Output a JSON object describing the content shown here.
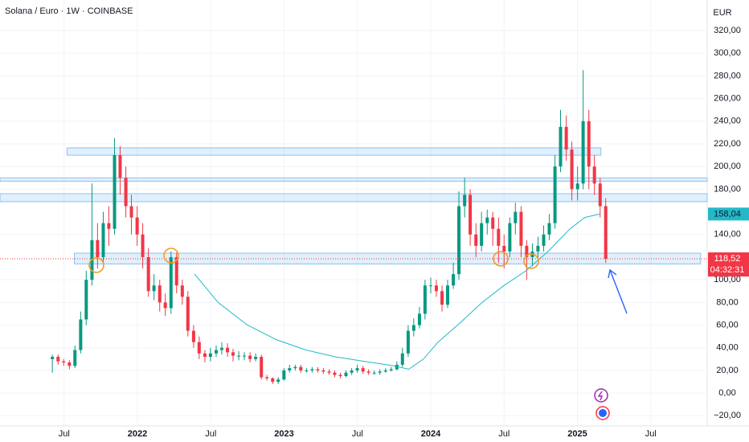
{
  "chart_data": {
    "type": "candlestick",
    "title": "Solana / Euro · 1W · COINBASE",
    "y_unit": "EUR",
    "up_color": "#089981",
    "down_color": "#f23645",
    "xlim": [
      2021.063,
      2025.885
    ],
    "xticks": [
      {
        "value": 2021.5,
        "label": "Jul"
      },
      2022,
      {
        "value": 2022.5,
        "label": "Jul"
      },
      2023,
      {
        "value": 2023.5,
        "label": "Jul"
      },
      2024,
      {
        "value": 2024.5,
        "label": "Jul"
      },
      2025,
      {
        "value": 2025.5,
        "label": "Jul"
      }
    ],
    "ylim": [
      -29,
      347
    ],
    "yticks": [
      {
        "value": -20,
        "label": "−20,00"
      },
      {
        "value": 0,
        "label": "0,00"
      },
      {
        "value": 20,
        "label": "20,00"
      },
      {
        "value": 40,
        "label": "40,00"
      },
      {
        "value": 60,
        "label": "60,00"
      },
      {
        "value": 80,
        "label": "80,00"
      },
      {
        "value": 100,
        "label": "100,00"
      },
      {
        "value": 140,
        "label": "140,00"
      },
      {
        "value": 180,
        "label": "180,00"
      },
      {
        "value": 200,
        "label": "200,00"
      },
      {
        "value": 220,
        "label": "220,00"
      },
      {
        "value": 240,
        "label": "240,00"
      },
      {
        "value": 260,
        "label": "260,00"
      },
      {
        "value": 280,
        "label": "280,00"
      },
      {
        "value": 300,
        "label": "300,00"
      },
      {
        "value": 320,
        "label": "320,00"
      }
    ],
    "x": [
      2021.42,
      2021.459,
      2021.497,
      2021.536,
      2021.574,
      2021.613,
      2021.651,
      2021.69,
      2021.728,
      2021.767,
      2021.805,
      2021.844,
      2021.882,
      2021.921,
      2021.959,
      2021.998,
      2022.036,
      2022.075,
      2022.113,
      2022.152,
      2022.19,
      2022.229,
      2022.267,
      2022.306,
      2022.344,
      2022.383,
      2022.421,
      2022.46,
      2022.498,
      2022.537,
      2022.575,
      2022.614,
      2022.652,
      2022.691,
      2022.729,
      2022.768,
      2022.806,
      2022.845,
      2022.883,
      2022.922,
      2022.96,
      2022.999,
      2023.037,
      2023.076,
      2023.114,
      2023.153,
      2023.191,
      2023.23,
      2023.268,
      2023.307,
      2023.345,
      2023.384,
      2023.422,
      2023.461,
      2023.499,
      2023.538,
      2023.576,
      2023.615,
      2023.653,
      2023.692,
      2023.73,
      2023.769,
      2023.807,
      2023.846,
      2023.884,
      2023.923,
      2023.961,
      2024.0,
      2024.038,
      2024.077,
      2024.115,
      2024.154,
      2024.192,
      2024.231,
      2024.269,
      2024.308,
      2024.346,
      2024.385,
      2024.423,
      2024.462,
      2024.5,
      2024.539,
      2024.577,
      2024.616,
      2024.654,
      2024.693,
      2024.731,
      2024.77,
      2024.808,
      2024.847,
      2024.885,
      2024.924,
      2024.962,
      2025.001,
      2025.039,
      2025.078,
      2025.116,
      2025.155,
      2025.193
    ],
    "open": [
      30,
      32,
      28,
      27,
      24,
      38,
      65,
      100,
      135,
      120,
      150,
      145,
      210,
      190,
      165,
      155,
      140,
      120,
      90,
      95,
      80,
      75,
      120,
      95,
      85,
      55,
      45,
      35,
      32,
      35,
      38,
      40,
      36,
      33,
      33,
      33,
      30,
      32,
      14,
      13,
      10,
      12,
      20,
      22,
      23,
      20,
      20,
      21,
      20,
      19,
      18,
      16,
      15,
      18,
      20,
      22,
      19,
      18,
      18,
      19,
      20,
      21,
      25,
      35,
      55,
      60,
      70,
      95,
      95,
      90,
      78,
      95,
      105,
      165,
      175,
      140,
      130,
      150,
      155,
      145,
      130,
      125,
      150,
      160,
      130,
      120,
      125,
      130,
      140,
      150,
      200,
      235,
      215,
      180,
      185,
      240,
      200,
      185,
      165
    ],
    "high": [
      34,
      34,
      30,
      29,
      42,
      72,
      108,
      185,
      150,
      160,
      165,
      225,
      218,
      200,
      175,
      165,
      150,
      128,
      105,
      100,
      88,
      125,
      124,
      100,
      90,
      60,
      50,
      38,
      40,
      42,
      45,
      44,
      39,
      37,
      36,
      36,
      35,
      34,
      16,
      14,
      14,
      22,
      25,
      25,
      25,
      22,
      23,
      23,
      22,
      21,
      20,
      18,
      20,
      22,
      25,
      24,
      21,
      20,
      21,
      22,
      23,
      28,
      40,
      60,
      66,
      76,
      100,
      102,
      100,
      95,
      100,
      115,
      178,
      190,
      180,
      150,
      160,
      162,
      160,
      155,
      140,
      155,
      168,
      165,
      135,
      132,
      138,
      148,
      158,
      210,
      250,
      245,
      222,
      200,
      285,
      250,
      210,
      190,
      172
    ],
    "low": [
      18,
      25,
      24,
      21,
      22,
      35,
      60,
      95,
      110,
      115,
      130,
      140,
      175,
      155,
      140,
      130,
      110,
      85,
      82,
      72,
      68,
      70,
      88,
      78,
      50,
      40,
      30,
      27,
      28,
      32,
      34,
      32,
      28,
      29,
      29,
      27,
      28,
      12,
      11,
      8,
      8,
      11,
      18,
      20,
      18,
      18,
      18,
      18,
      17,
      16,
      14,
      13,
      14,
      16,
      18,
      17,
      16,
      16,
      16,
      18,
      19,
      20,
      23,
      32,
      50,
      57,
      65,
      88,
      85,
      72,
      75,
      92,
      100,
      155,
      130,
      120,
      125,
      140,
      130,
      115,
      110,
      120,
      140,
      120,
      100,
      112,
      118,
      125,
      135,
      145,
      195,
      205,
      170,
      170,
      180,
      180,
      175,
      155,
      115
    ],
    "close": [
      32,
      28,
      27,
      24,
      38,
      65,
      100,
      135,
      120,
      150,
      145,
      210,
      190,
      165,
      155,
      140,
      120,
      90,
      95,
      80,
      75,
      120,
      95,
      85,
      55,
      45,
      35,
      32,
      35,
      38,
      40,
      36,
      33,
      33,
      33,
      30,
      32,
      14,
      13,
      10,
      12,
      20,
      22,
      23,
      20,
      20,
      21,
      20,
      19,
      18,
      16,
      15,
      18,
      20,
      22,
      19,
      18,
      18,
      19,
      20,
      21,
      25,
      35,
      55,
      60,
      70,
      95,
      95,
      90,
      78,
      95,
      105,
      165,
      175,
      140,
      130,
      150,
      155,
      145,
      130,
      125,
      150,
      160,
      130,
      120,
      125,
      130,
      140,
      150,
      200,
      235,
      215,
      180,
      185,
      240,
      200,
      185,
      165,
      118.52
    ],
    "ma": {
      "color": "#22b8c8",
      "x": [
        2022.39,
        2022.55,
        2022.75,
        2022.95,
        2023.15,
        2023.35,
        2023.55,
        2023.75,
        2023.85,
        2023.95,
        2024.05,
        2024.2,
        2024.35,
        2024.5,
        2024.65,
        2024.8,
        2024.95,
        2025.05,
        2025.15
      ],
      "values": [
        105,
        80,
        60,
        47,
        38,
        32,
        28,
        24,
        21,
        30,
        45,
        62,
        80,
        95,
        108,
        125,
        145,
        155,
        158.04
      ]
    },
    "ma_last": {
      "value": 158.04,
      "label": "158,04"
    },
    "last_price": {
      "value": 118.52,
      "label": "118,52"
    },
    "countdown": "04:32:31",
    "zones": [
      {
        "x0": 2021.52,
        "x1": 2025.16,
        "y0": 210,
        "y1": 216.5
      },
      {
        "x0": 2021.063,
        "x1": 2025.885,
        "y0": 187,
        "y1": 190
      },
      {
        "x0": 2021.063,
        "x1": 2025.885,
        "y0": 169,
        "y1": 176
      },
      {
        "x0": 2021.57,
        "x1": 2025.84,
        "y0": 114,
        "y1": 123.5
      }
    ]
  }
}
